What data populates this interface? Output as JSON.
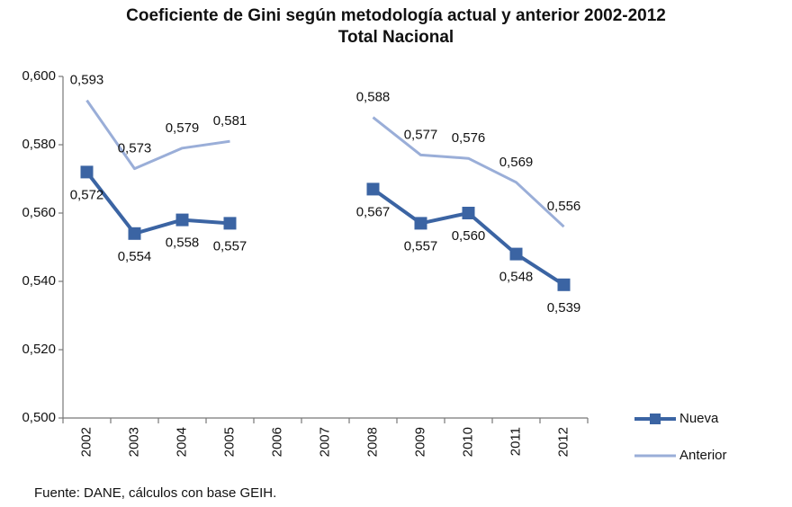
{
  "chart_data": {
    "type": "line",
    "title": "Coeficiente de Gini según metodología actual  y anterior 2002-2012",
    "subtitle": "Total Nacional",
    "source": "Fuente: DANE, cálculos con base GEIH.",
    "categories": [
      "2002",
      "2003",
      "2004",
      "2005",
      "2006",
      "2007",
      "2008",
      "2009",
      "2010",
      "2011",
      "2012"
    ],
    "series": [
      {
        "name": "Nueva",
        "color": "#3b64a3",
        "marker": "square",
        "values": [
          0.572,
          0.554,
          0.558,
          0.557,
          null,
          null,
          0.567,
          0.557,
          0.56,
          0.548,
          0.539
        ],
        "value_labels": [
          "0,572",
          "0,554",
          "0,558",
          "0,557",
          null,
          null,
          "0,567",
          "0,557",
          "0,560",
          "0,548",
          "0,539"
        ]
      },
      {
        "name": "Anterior",
        "color": "#9aaed8",
        "marker": "none",
        "values": [
          0.593,
          0.573,
          0.579,
          0.581,
          null,
          null,
          0.588,
          0.577,
          0.576,
          0.569,
          0.556
        ],
        "value_labels": [
          "0,593",
          "0,573",
          "0,579",
          "0,581",
          null,
          null,
          "0,588",
          "0,577",
          "0,576",
          "0,569",
          "0,556"
        ]
      }
    ],
    "ylim": [
      0.5,
      0.6
    ],
    "yticks": [
      {
        "value": 0.5,
        "label": "0,500"
      },
      {
        "value": 0.52,
        "label": "0,520"
      },
      {
        "value": 0.54,
        "label": "0,540"
      },
      {
        "value": 0.56,
        "label": "0,560"
      },
      {
        "value": 0.58,
        "label": "0,580"
      },
      {
        "value": 0.6,
        "label": "0,600"
      }
    ],
    "grid": false,
    "legend": "right"
  }
}
